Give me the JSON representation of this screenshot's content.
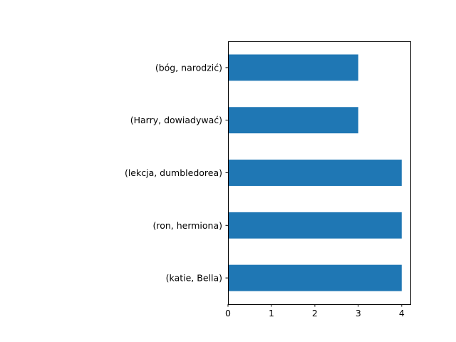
{
  "chart_data": {
    "type": "bar",
    "orientation": "horizontal",
    "title": "",
    "xlabel": "",
    "ylabel": "",
    "categories": [
      "(katie, Bella)",
      "(ron, hermiona)",
      "(lekcja, dumbledorea)",
      "(Harry, dowiadywać)",
      "(bóg, narodzić)"
    ],
    "values": [
      4,
      4,
      4,
      3,
      3
    ],
    "xlim": [
      0,
      4.2
    ],
    "xticks": [
      0,
      1,
      2,
      3,
      4
    ],
    "grid": false,
    "bar_color": "#1f77b4"
  }
}
